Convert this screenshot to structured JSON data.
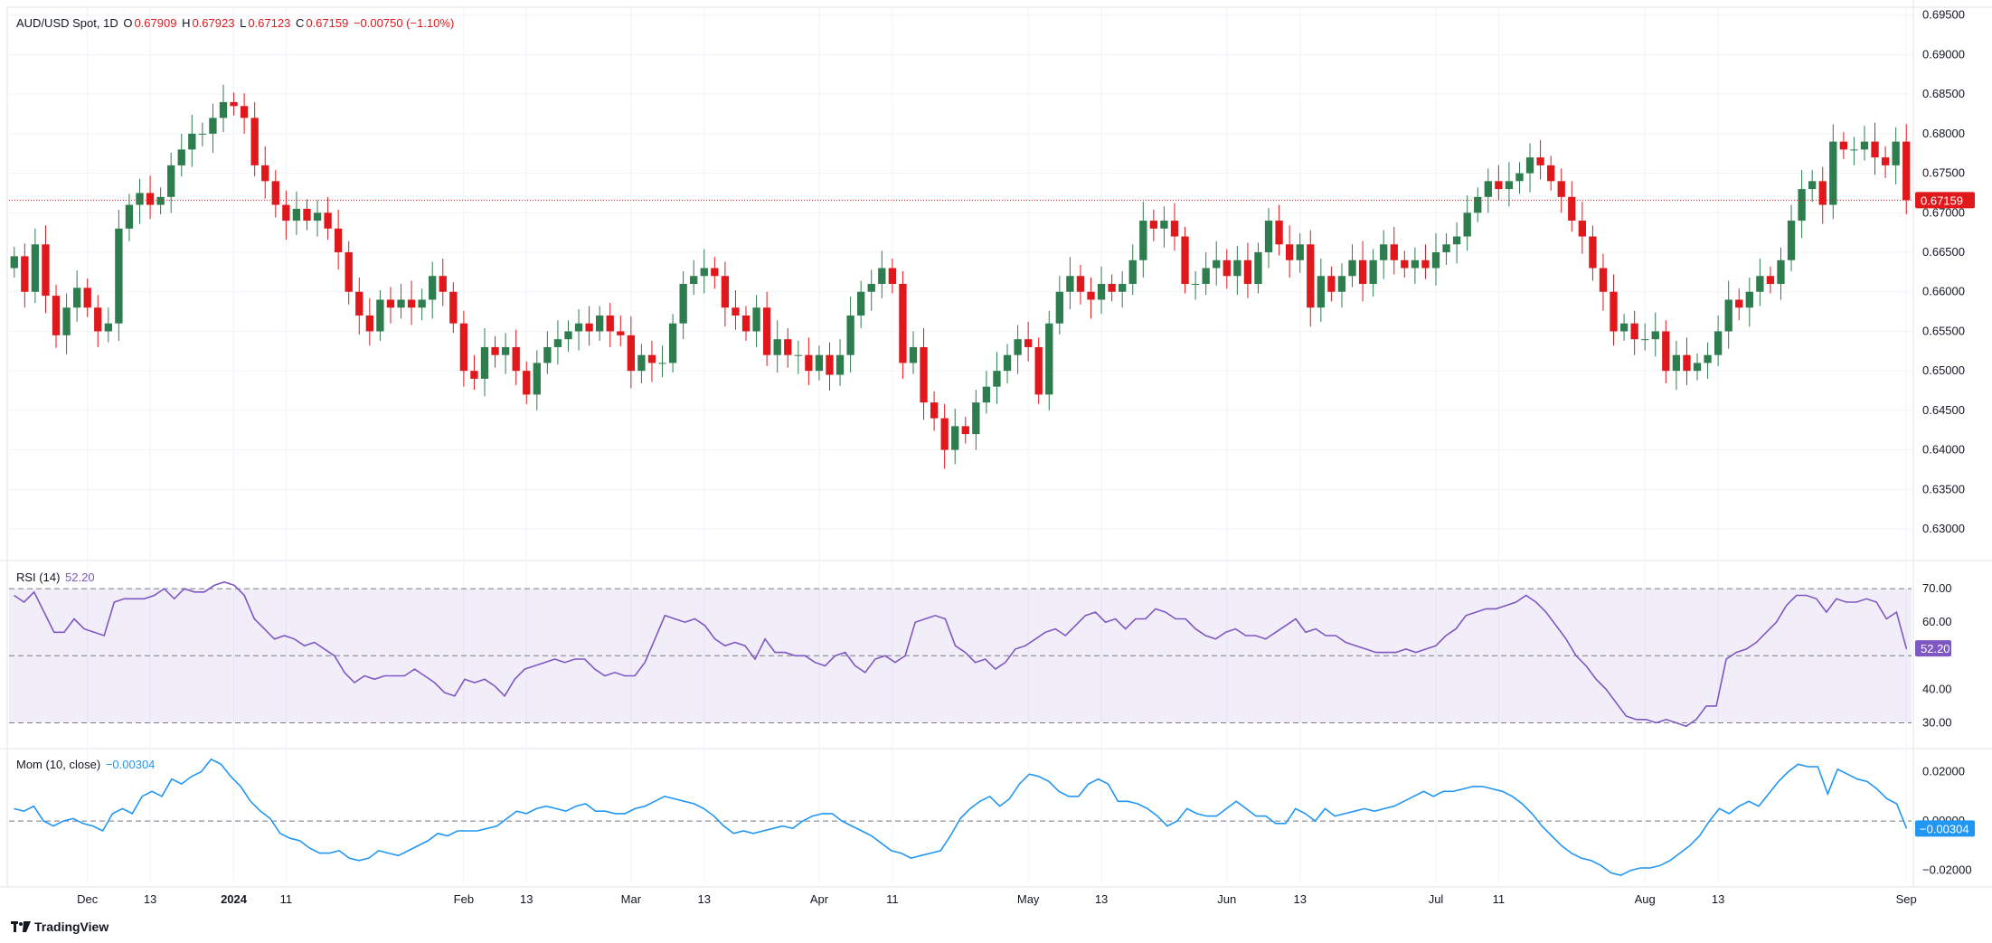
{
  "header": {
    "symbol": "AUD/USD Spot, 1D",
    "o_label": "O",
    "o_value": "0.67909",
    "h_label": "H",
    "h_value": "0.67923",
    "l_label": "L",
    "l_value": "0.67123",
    "c_label": "C",
    "c_value": "0.67159",
    "change": "−0.00750 (−1.10%)"
  },
  "rsi_legend": {
    "label": "RSI (14)",
    "value": "52.20"
  },
  "mom_legend": {
    "label": "Mom (10, close)",
    "value": "−0.00304"
  },
  "brand": "TradingView",
  "colors": {
    "up": "#2e7d4f",
    "down": "#e0181c",
    "rsi": "#7e57c2",
    "mom": "#2196f3",
    "price_line": "#e0181c"
  },
  "chart_data": [
    {
      "type": "candlestick",
      "title": "AUD/USD Spot, 1D",
      "ylim": [
        0.626,
        0.696
      ],
      "y_ticks": [
        "0.69500",
        "0.69000",
        "0.68500",
        "0.68000",
        "0.67500",
        "0.67000",
        "0.66500",
        "0.66000",
        "0.65500",
        "0.65000",
        "0.64500",
        "0.64000",
        "0.63500",
        "0.63000"
      ],
      "x_ticks": [
        "Dec",
        "13",
        "2024",
        "11",
        "Feb",
        "13",
        "Mar",
        "13",
        "Apr",
        "11",
        "May",
        "13",
        "Jun",
        "13",
        "Jul",
        "11",
        "Aug",
        "13",
        "Sep"
      ],
      "last_price": "0.67159",
      "closes": [
        0.6645,
        0.66,
        0.666,
        0.6595,
        0.6545,
        0.658,
        0.6605,
        0.658,
        0.655,
        0.656,
        0.668,
        0.671,
        0.6725,
        0.671,
        0.672,
        0.676,
        0.678,
        0.68,
        0.68,
        0.682,
        0.684,
        0.6835,
        0.682,
        0.676,
        0.674,
        0.671,
        0.669,
        0.6705,
        0.669,
        0.67,
        0.668,
        0.665,
        0.66,
        0.657,
        0.655,
        0.659,
        0.658,
        0.659,
        0.658,
        0.659,
        0.662,
        0.66,
        0.656,
        0.65,
        0.649,
        0.653,
        0.652,
        0.653,
        0.65,
        0.647,
        0.651,
        0.653,
        0.654,
        0.655,
        0.656,
        0.655,
        0.657,
        0.655,
        0.6545,
        0.65,
        0.652,
        0.651,
        0.651,
        0.656,
        0.661,
        0.662,
        0.663,
        0.662,
        0.658,
        0.657,
        0.655,
        0.658,
        0.652,
        0.654,
        0.652,
        0.652,
        0.65,
        0.652,
        0.6495,
        0.652,
        0.657,
        0.66,
        0.661,
        0.663,
        0.661,
        0.651,
        0.653,
        0.646,
        0.644,
        0.64,
        0.643,
        0.642,
        0.646,
        0.648,
        0.65,
        0.652,
        0.654,
        0.653,
        0.647,
        0.656,
        0.66,
        0.662,
        0.66,
        0.659,
        0.661,
        0.66,
        0.661,
        0.664,
        0.669,
        0.668,
        0.669,
        0.667,
        0.661,
        0.661,
        0.663,
        0.664,
        0.662,
        0.664,
        0.661,
        0.665,
        0.669,
        0.666,
        0.664,
        0.666,
        0.658,
        0.662,
        0.66,
        0.662,
        0.664,
        0.661,
        0.664,
        0.666,
        0.664,
        0.663,
        0.664,
        0.663,
        0.665,
        0.666,
        0.667,
        0.67,
        0.672,
        0.674,
        0.673,
        0.674,
        0.675,
        0.677,
        0.676,
        0.674,
        0.672,
        0.669,
        0.667,
        0.663,
        0.66,
        0.655,
        0.656,
        0.654,
        0.654,
        0.655,
        0.65,
        0.652,
        0.65,
        0.651,
        0.652,
        0.655,
        0.659,
        0.658,
        0.66,
        0.662,
        0.661,
        0.664,
        0.669,
        0.673,
        0.674,
        0.671,
        0.679,
        0.678,
        0.678,
        0.679,
        0.677,
        0.676,
        0.679,
        0.6716
      ]
    },
    {
      "type": "line",
      "name": "RSI (14)",
      "ylim": [
        25,
        73
      ],
      "y_ticks": [
        "70.00",
        "60.00",
        "40.00",
        "30.00"
      ],
      "current_value": "52.20",
      "bands": [
        30,
        50,
        70
      ],
      "values": [
        68,
        66,
        69,
        63,
        57,
        57,
        61,
        58,
        57,
        56,
        66,
        67,
        67,
        67,
        68,
        70,
        67,
        70,
        69,
        69,
        71,
        72,
        71,
        68,
        61,
        58,
        55,
        56,
        55,
        53,
        54,
        52,
        50,
        45,
        42,
        44,
        43,
        44,
        44,
        44,
        46,
        44,
        42,
        39,
        38,
        43,
        42,
        43,
        41,
        38,
        43,
        46,
        47,
        48,
        49,
        48,
        49,
        49,
        46,
        44,
        45,
        44,
        44,
        48,
        55,
        62,
        61,
        60,
        61,
        59,
        55,
        53,
        54,
        53,
        49,
        55,
        51,
        51,
        50,
        50,
        48,
        47,
        50,
        51,
        47,
        45,
        49,
        50,
        48,
        50,
        60,
        61,
        62,
        61,
        53,
        51,
        48,
        49,
        46,
        48,
        52,
        53,
        55,
        57,
        58,
        56,
        59,
        62,
        63,
        60,
        61,
        58,
        61,
        61,
        64,
        63,
        61,
        61,
        58,
        56,
        55,
        57,
        58,
        56,
        56,
        55,
        57,
        59,
        61,
        57,
        58,
        56,
        56,
        54,
        53,
        52,
        51,
        51,
        51,
        52,
        51,
        52,
        53,
        56,
        58,
        62,
        63,
        64,
        64,
        65,
        66,
        68,
        66,
        63,
        59,
        55,
        50,
        47,
        43,
        40,
        36,
        32,
        31,
        31,
        30,
        31,
        30,
        29,
        31,
        35,
        35,
        49,
        51,
        52,
        54,
        57,
        60,
        65,
        68,
        68,
        67,
        63,
        67,
        66,
        66,
        67,
        66,
        61,
        63,
        52
      ]
    },
    {
      "type": "line",
      "name": "Mom (10, close)",
      "ylim": [
        -0.0245,
        0.0275
      ],
      "y_ticks": [
        "0.02000",
        "0.00000",
        "-0.02000"
      ],
      "current_value": "-0.00304",
      "values": [
        0.005,
        0.004,
        0.006,
        0.0,
        -0.002,
        0.0,
        0.001,
        -0.001,
        -0.002,
        -0.004,
        0.003,
        0.005,
        0.003,
        0.01,
        0.012,
        0.01,
        0.017,
        0.015,
        0.018,
        0.02,
        0.025,
        0.023,
        0.018,
        0.014,
        0.008,
        0.004,
        0.001,
        -0.005,
        -0.007,
        -0.008,
        -0.011,
        -0.013,
        -0.013,
        -0.012,
        -0.015,
        -0.016,
        -0.015,
        -0.012,
        -0.013,
        -0.014,
        -0.012,
        -0.01,
        -0.008,
        -0.005,
        -0.006,
        -0.004,
        -0.004,
        -0.004,
        -0.003,
        -0.002,
        0.001,
        0.004,
        0.003,
        0.005,
        0.006,
        0.005,
        0.004,
        0.006,
        0.007,
        0.004,
        0.004,
        0.003,
        0.003,
        0.005,
        0.006,
        0.008,
        0.01,
        0.009,
        0.008,
        0.007,
        0.005,
        0.002,
        -0.002,
        -0.005,
        -0.004,
        -0.005,
        -0.004,
        -0.003,
        -0.002,
        -0.003,
        0.0,
        0.002,
        0.003,
        0.003,
        0.0,
        -0.002,
        -0.004,
        -0.006,
        -0.009,
        -0.012,
        -0.013,
        -0.015,
        -0.014,
        -0.013,
        -0.012,
        -0.006,
        0.001,
        0.005,
        0.008,
        0.01,
        0.006,
        0.009,
        0.015,
        0.019,
        0.018,
        0.016,
        0.012,
        0.01,
        0.01,
        0.015,
        0.017,
        0.015,
        0.008,
        0.008,
        0.007,
        0.005,
        0.002,
        -0.002,
        0.0,
        0.005,
        0.003,
        0.002,
        0.002,
        0.005,
        0.008,
        0.005,
        0.002,
        0.002,
        -0.001,
        -0.001,
        0.005,
        0.003,
        0.0,
        0.005,
        0.002,
        0.003,
        0.004,
        0.005,
        0.004,
        0.005,
        0.006,
        0.008,
        0.01,
        0.012,
        0.01,
        0.012,
        0.012,
        0.013,
        0.014,
        0.014,
        0.013,
        0.012,
        0.01,
        0.007,
        0.003,
        -0.002,
        -0.006,
        -0.01,
        -0.013,
        -0.015,
        -0.016,
        -0.018,
        -0.021,
        -0.022,
        -0.02,
        -0.019,
        -0.019,
        -0.018,
        -0.016,
        -0.013,
        -0.01,
        -0.006,
        0.0,
        0.005,
        0.003,
        0.006,
        0.008,
        0.006,
        0.011,
        0.016,
        0.02,
        0.023,
        0.022,
        0.022,
        0.011,
        0.021,
        0.019,
        0.017,
        0.016,
        0.013,
        0.009,
        0.007,
        -0.003
      ]
    }
  ]
}
